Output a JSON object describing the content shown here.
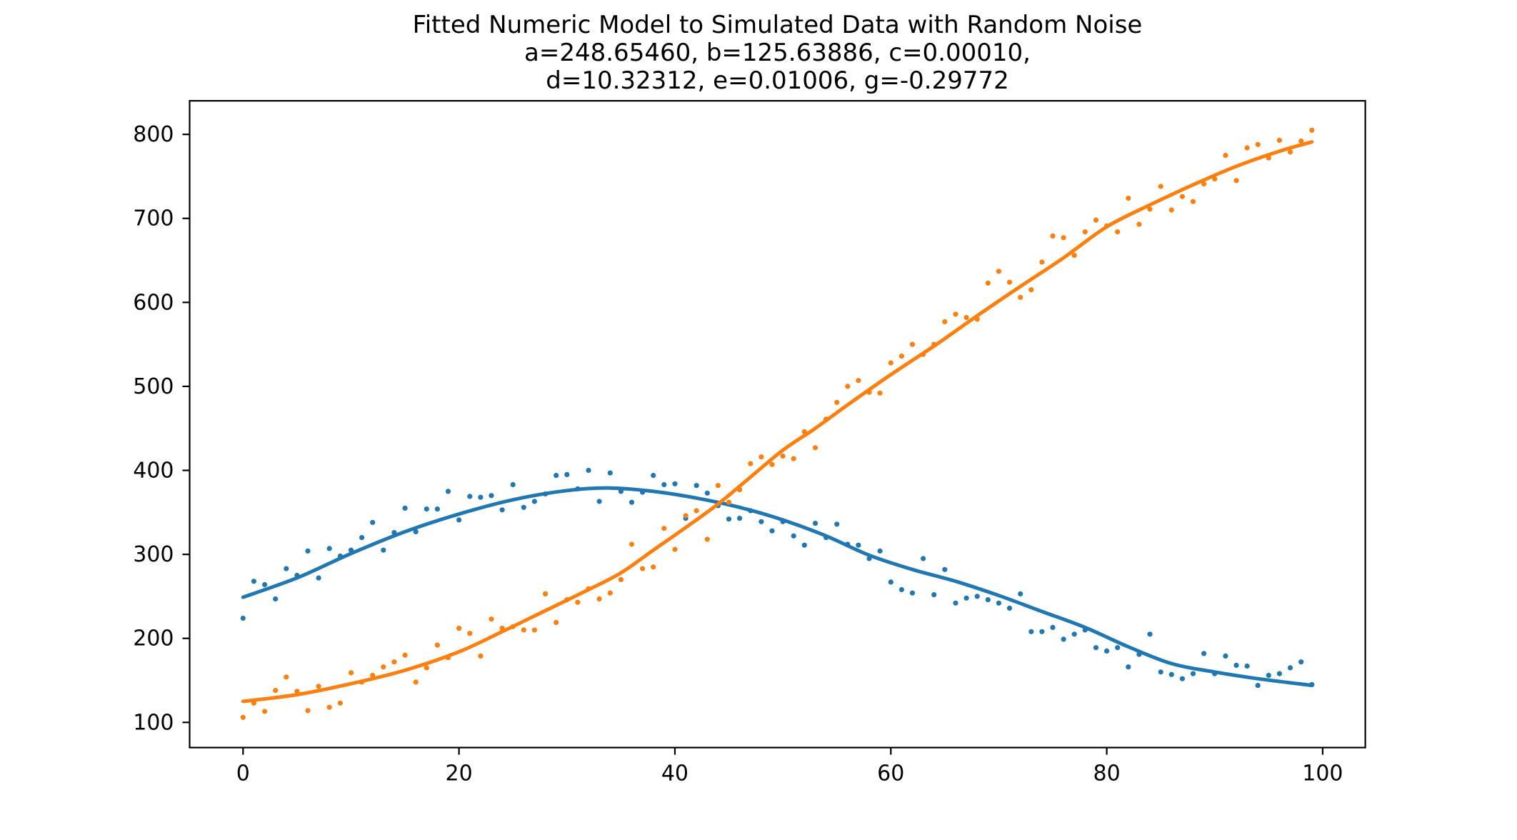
{
  "chart_data": {
    "type": "scatter",
    "title": "Fitted Numeric Model to Simulated Data with Random Noise",
    "subtitle1": "a=248.65460, b=125.63886, c=0.00010,",
    "subtitle2": "d=10.32312, e=0.01006, g=-0.29772",
    "xlabel": "",
    "ylabel": "",
    "xlim": [
      -4.95,
      103.95
    ],
    "ylim": [
      70,
      840
    ],
    "xticks": [
      0,
      20,
      40,
      60,
      80,
      100
    ],
    "yticks": [
      100,
      200,
      300,
      400,
      500,
      600,
      700,
      800
    ],
    "grid": false,
    "legend": "none",
    "colors": {
      "series1": "#1f77b4",
      "series2": "#ff7f0e",
      "axis": "#000000"
    },
    "series": [
      {
        "name": "series1-scatter",
        "kind": "scatter",
        "color": "#1f77b4",
        "x": [
          0,
          1,
          2,
          3,
          4,
          5,
          6,
          7,
          8,
          9,
          10,
          11,
          12,
          13,
          14,
          15,
          16,
          17,
          18,
          19,
          20,
          21,
          22,
          23,
          24,
          25,
          26,
          27,
          28,
          29,
          30,
          31,
          32,
          33,
          34,
          35,
          36,
          37,
          38,
          39,
          40,
          41,
          42,
          43,
          44,
          45,
          46,
          47,
          48,
          49,
          50,
          51,
          52,
          53,
          54,
          55,
          56,
          57,
          58,
          59,
          60,
          61,
          62,
          63,
          64,
          65,
          66,
          67,
          68,
          69,
          70,
          71,
          72,
          73,
          74,
          75,
          76,
          77,
          78,
          79,
          80,
          81,
          82,
          83,
          84,
          85,
          86,
          87,
          88,
          89,
          90,
          91,
          92,
          93,
          94,
          95,
          96,
          97,
          98,
          99
        ],
        "y": [
          224,
          268,
          264,
          247,
          283,
          275,
          304,
          272,
          307,
          298,
          305,
          320,
          338,
          305,
          326,
          355,
          327,
          354,
          354,
          375,
          341,
          369,
          368,
          370,
          353,
          383,
          356,
          363,
          372,
          394,
          395,
          378,
          400,
          363,
          397,
          375,
          362,
          374,
          394,
          383,
          384,
          343,
          382,
          373,
          358,
          342,
          343,
          352,
          339,
          328,
          339,
          322,
          311,
          337,
          320,
          336,
          312,
          311,
          295,
          304,
          267,
          258,
          254,
          295,
          252,
          282,
          242,
          248,
          250,
          246,
          242,
          236,
          253,
          208,
          208,
          213,
          199,
          205,
          210,
          189,
          185,
          189,
          166,
          181,
          205,
          160,
          157,
          152,
          158,
          182,
          158,
          179,
          168,
          167,
          144,
          156,
          158,
          165,
          172,
          145
        ]
      },
      {
        "name": "series1-fit",
        "kind": "line",
        "color": "#1f77b4",
        "x": [
          0,
          5,
          10,
          15,
          20,
          25,
          30,
          34,
          38,
          42,
          46,
          50,
          54,
          58,
          62,
          66,
          70,
          74,
          78,
          82,
          86,
          90,
          94,
          99
        ],
        "y": [
          249,
          272,
          301,
          327,
          348,
          365,
          376,
          379,
          375,
          367,
          356,
          341,
          322,
          299,
          282,
          268,
          251,
          232,
          213,
          190,
          170,
          160,
          152,
          144
        ]
      },
      {
        "name": "series2-scatter",
        "kind": "scatter",
        "color": "#ff7f0e",
        "x": [
          0,
          1,
          2,
          3,
          4,
          5,
          6,
          7,
          8,
          9,
          10,
          11,
          12,
          13,
          14,
          15,
          16,
          17,
          18,
          19,
          20,
          21,
          22,
          23,
          24,
          25,
          26,
          27,
          28,
          29,
          30,
          31,
          32,
          33,
          34,
          35,
          36,
          37,
          38,
          39,
          40,
          41,
          42,
          43,
          44,
          45,
          46,
          47,
          48,
          49,
          50,
          51,
          52,
          53,
          54,
          55,
          56,
          57,
          58,
          59,
          60,
          61,
          62,
          63,
          64,
          65,
          66,
          67,
          68,
          69,
          70,
          71,
          72,
          73,
          74,
          75,
          76,
          77,
          78,
          79,
          80,
          81,
          82,
          83,
          84,
          85,
          86,
          87,
          88,
          89,
          90,
          91,
          92,
          93,
          94,
          95,
          96,
          97,
          98,
          99
        ],
        "y": [
          106,
          123,
          113,
          138,
          154,
          137,
          114,
          143,
          118,
          123,
          159,
          148,
          156,
          166,
          172,
          180,
          148,
          165,
          192,
          177,
          212,
          206,
          179,
          223,
          212,
          214,
          210,
          210,
          253,
          219,
          246,
          243,
          259,
          247,
          254,
          270,
          312,
          283,
          285,
          331,
          306,
          346,
          352,
          318,
          382,
          362,
          377,
          408,
          416,
          407,
          417,
          414,
          446,
          427,
          461,
          481,
          500,
          507,
          493,
          492,
          528,
          536,
          550,
          538,
          550,
          577,
          586,
          582,
          580,
          623,
          637,
          624,
          606,
          615,
          648,
          679,
          677,
          656,
          684,
          698,
          691,
          684,
          724,
          693,
          711,
          738,
          710,
          726,
          720,
          741,
          747,
          775,
          745,
          784,
          788,
          772,
          793,
          779,
          792,
          805
        ]
      },
      {
        "name": "series2-fit",
        "kind": "line",
        "color": "#ff7f0e",
        "x": [
          0,
          5,
          10,
          15,
          20,
          24,
          28,
          32,
          35,
          38,
          41,
          44,
          47,
          50,
          53,
          56,
          60,
          64,
          68,
          72,
          76,
          80,
          84,
          88,
          92,
          96,
          99
        ],
        "y": [
          125,
          133,
          146,
          162,
          184,
          208,
          233,
          258,
          278,
          305,
          332,
          360,
          392,
          424,
          450,
          478,
          514,
          548,
          584,
          619,
          653,
          690,
          716,
          740,
          762,
          780,
          791
        ]
      }
    ]
  }
}
